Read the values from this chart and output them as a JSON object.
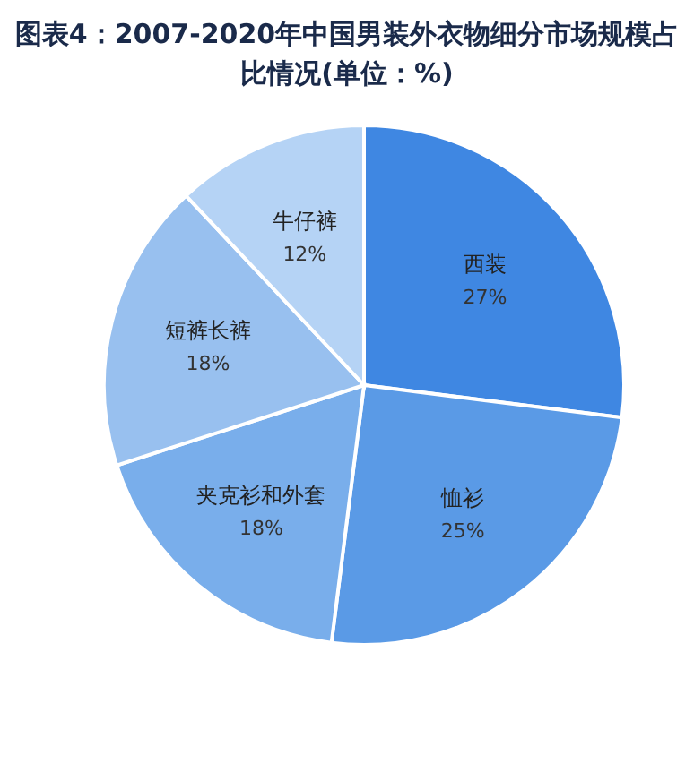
{
  "chart_data": {
    "type": "pie",
    "title": "图表4：2007-2020年中国男装外衣物细分市场规模占比情况(单位：%)",
    "categories": [
      "西装",
      "恤衫",
      "夹克衫和外套",
      "短裤长裤",
      "牛仔裤"
    ],
    "values": [
      27,
      25,
      18,
      18,
      12
    ],
    "value_labels": [
      "27%",
      "25%",
      "18%",
      "18%",
      "12%"
    ],
    "colors": [
      "#3f87e2",
      "#5a9ae6",
      "#79aeeb",
      "#98c0ef",
      "#b5d3f5"
    ]
  }
}
